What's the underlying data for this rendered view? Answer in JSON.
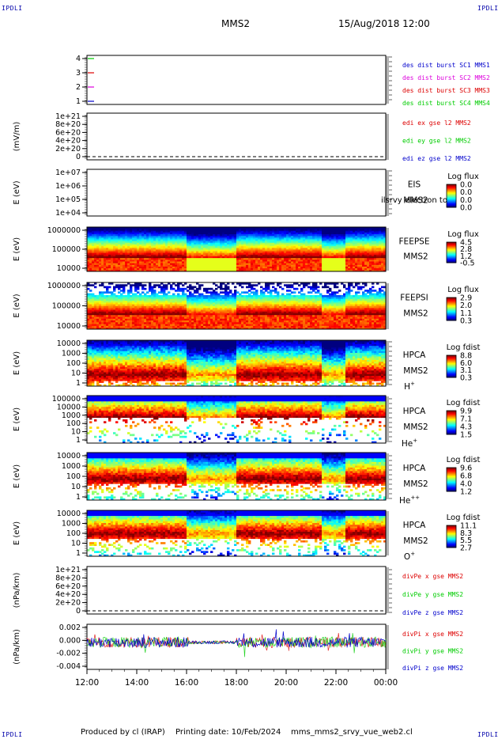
{
  "header": {
    "corner_tl": "IPDLI",
    "corner_tr": "IPDLI",
    "corner_bl": "IPDLI",
    "corner_br": "IPDLI",
    "spacecraft": "MMS2",
    "datetime": "15/Aug/2018 12:00"
  },
  "footer": {
    "produced": "Produced by cl (IRAP)",
    "printing": "Printing date: 10/Feb/2024",
    "script": "mms_mms2_srvy_vue_web2.cl"
  },
  "colors": {
    "red": "#dd0000",
    "green": "#00cc00",
    "blue": "#0000cc",
    "magenta": "#dd00dd",
    "burst_blue": "#0000cc"
  },
  "chart_data": [
    {
      "type": "timeline",
      "id": "burst",
      "ylim": [
        0.5,
        4.5
      ],
      "yticks": [
        "1",
        "2",
        "3",
        "4"
      ],
      "legend": [
        {
          "text": "des dist burst SC1 MMS1",
          "color": "#0000cc"
        },
        {
          "text": "des dist burst SC2 MMS2",
          "color": "#dd00dd"
        },
        {
          "text": "des dist burst SC3 MMS3",
          "color": "#dd0000"
        },
        {
          "text": "des dist burst SC4 MMS4",
          "color": "#00cc00"
        }
      ]
    },
    {
      "type": "line",
      "id": "edi",
      "ylabel": "(mV/m)",
      "yticks": [
        "0",
        "2e+20",
        "4e+20",
        "6e+20",
        "8e+20",
        "1e+21"
      ],
      "legend": [
        {
          "text": "edi ex gse l2 MMS2",
          "color": "#dd0000"
        },
        {
          "text": "edi ey gse l2 MMS2",
          "color": "#00cc00"
        },
        {
          "text": "edi ez gse l2 MMS2",
          "color": "#0000cc"
        }
      ]
    },
    {
      "type": "heatmap",
      "id": "eis",
      "ylabel": "E (eV)",
      "yticks": [
        "1e+04",
        "1e+05",
        "1e+06",
        "1e+07"
      ],
      "right_labels": [
        "EIS",
        "MMS2"
      ],
      "overlay": "ilsrvy electron to",
      "colorbar": {
        "title": "Log flux",
        "ticks": [
          "0.0",
          "0.0",
          "0.0",
          "0.0"
        ]
      }
    },
    {
      "type": "heatmap",
      "id": "feepse",
      "ylabel": "E (eV)",
      "yticks": [
        "10000",
        "100000",
        "1000000"
      ],
      "right_labels": [
        "FEEPSE",
        "MMS2"
      ],
      "colorbar": {
        "title": "Log flux",
        "ticks": [
          "4.5",
          "2.8",
          "1.2",
          "-0.5"
        ]
      }
    },
    {
      "type": "heatmap",
      "id": "feepsi",
      "ylabel": "E (eV)",
      "yticks": [
        "10000",
        "100000",
        "1000000"
      ],
      "right_labels": [
        "FEEPSI",
        "MMS2"
      ],
      "colorbar": {
        "title": "Log flux",
        "ticks": [
          "2.9",
          "2.0",
          "1.1",
          "0.3"
        ]
      }
    },
    {
      "type": "heatmap",
      "id": "hpca_h",
      "ylabel": "E (eV)",
      "yticks": [
        "1",
        "10",
        "100",
        "1000",
        "10000"
      ],
      "right_labels": [
        "HPCA",
        "MMS2"
      ],
      "species": "H",
      "species_charge": "+",
      "colorbar": {
        "title": "Log fdist",
        "ticks": [
          "8.8",
          "6.0",
          "3.1",
          "0.3"
        ]
      }
    },
    {
      "type": "heatmap",
      "id": "hpca_he",
      "ylabel": "E (eV)",
      "yticks": [
        "1",
        "10",
        "100",
        "1000",
        "10000",
        "100000"
      ],
      "right_labels": [
        "HPCA",
        "MMS2"
      ],
      "species": "He",
      "species_charge": "+",
      "colorbar": {
        "title": "Log fdist",
        "ticks": [
          "9.9",
          "7.1",
          "4.3",
          "1.5"
        ]
      }
    },
    {
      "type": "heatmap",
      "id": "hpca_hepp",
      "ylabel": "E (eV)",
      "yticks": [
        "1",
        "10",
        "100",
        "1000",
        "10000"
      ],
      "right_labels": [
        "HPCA",
        "MMS2"
      ],
      "species": "He",
      "species_charge": "++",
      "colorbar": {
        "title": "Log fdist",
        "ticks": [
          "9.6",
          "6.8",
          "4.0",
          "1.2"
        ]
      }
    },
    {
      "type": "heatmap",
      "id": "hpca_o",
      "ylabel": "E (eV)",
      "yticks": [
        "1",
        "10",
        "100",
        "1000",
        "10000"
      ],
      "right_labels": [
        "HPCA",
        "MMS2"
      ],
      "species": "O",
      "species_charge": "+",
      "colorbar": {
        "title": "Log fdist",
        "ticks": [
          "11.1",
          "8.3",
          "5.5",
          "2.7"
        ]
      }
    },
    {
      "type": "line",
      "id": "divpe",
      "ylabel": "(nPa/km)",
      "yticks": [
        "0",
        "2e+20",
        "4e+20",
        "6e+20",
        "8e+20",
        "1e+21"
      ],
      "legend": [
        {
          "text": "divPe x gse MMS2",
          "color": "#dd0000"
        },
        {
          "text": "divPe y gse MMS2",
          "color": "#00cc00"
        },
        {
          "text": "divPe z gse MMS2",
          "color": "#0000cc"
        }
      ]
    },
    {
      "type": "line",
      "id": "divpi",
      "ylabel": "(nPa/km)",
      "ylim": [
        -0.0045,
        0.003
      ],
      "yticks": [
        "-0.004",
        "-0.002",
        "0.000",
        "0.002"
      ],
      "legend": [
        {
          "text": "divPi x gse MMS2",
          "color": "#dd0000"
        },
        {
          "text": "divPi y gse MMS2",
          "color": "#00cc00"
        },
        {
          "text": "divPi z gse MMS2",
          "color": "#0000cc"
        }
      ]
    }
  ],
  "time_axis": {
    "ticks": [
      "12:00",
      "14:00",
      "16:00",
      "18:00",
      "20:00",
      "22:00",
      "00:00"
    ]
  }
}
